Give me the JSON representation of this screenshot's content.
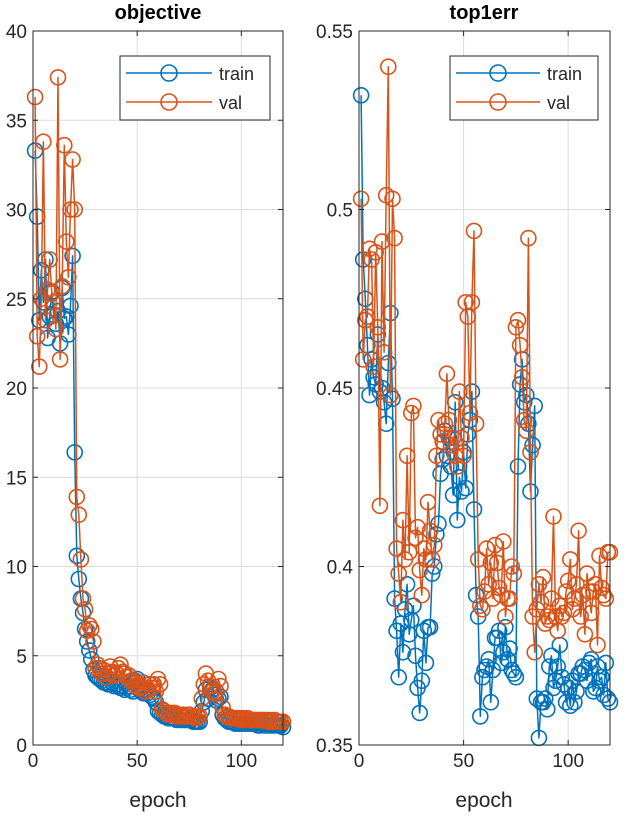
{
  "colors": {
    "train": "#0072BD",
    "val": "#D95319"
  },
  "chart_data": [
    {
      "type": "line",
      "title": "objective",
      "xlabel": "epoch",
      "ylabel": "",
      "xlim": [
        0,
        120
      ],
      "ylim": [
        0,
        40
      ],
      "xticks": [
        0,
        50,
        100
      ],
      "yticks": [
        0,
        5,
        10,
        15,
        20,
        25,
        30,
        35,
        40
      ],
      "grid": true,
      "legend": "top-right",
      "series": [
        {
          "name": "train",
          "color": "#0072BD",
          "x": [
            1,
            2,
            3,
            4,
            5,
            6,
            7,
            8,
            9,
            10,
            11,
            12,
            13,
            14,
            15,
            16,
            17,
            18,
            19,
            20,
            21,
            22,
            23,
            24,
            25,
            26,
            27,
            28,
            29,
            30,
            31,
            32,
            33,
            34,
            35,
            36,
            37,
            38,
            39,
            40,
            41,
            42,
            43,
            44,
            45,
            46,
            47,
            48,
            49,
            50,
            51,
            52,
            53,
            54,
            55,
            56,
            57,
            58,
            59,
            60,
            61,
            62,
            63,
            64,
            65,
            66,
            67,
            68,
            69,
            70,
            71,
            72,
            73,
            74,
            75,
            76,
            77,
            78,
            79,
            80,
            81,
            82,
            83,
            84,
            85,
            86,
            87,
            88,
            89,
            90,
            91,
            92,
            93,
            94,
            95,
            96,
            97,
            98,
            99,
            100,
            101,
            102,
            103,
            104,
            105,
            106,
            107,
            108,
            109,
            110,
            111,
            112,
            113,
            114,
            115,
            116,
            117,
            118,
            119,
            120
          ],
          "y": [
            33.3,
            29.6,
            23.8,
            26.6,
            24.8,
            27.2,
            22.8,
            24.0,
            25.4,
            24.1,
            23.6,
            24.3,
            22.5,
            25.6,
            23.9,
            24.0,
            23.0,
            24.6,
            27.4,
            16.4,
            10.6,
            9.3,
            8.2,
            7.4,
            6.5,
            5.8,
            5.3,
            4.8,
            4.2,
            3.9,
            3.8,
            3.7,
            3.6,
            3.5,
            3.5,
            3.4,
            3.4,
            3.5,
            3.3,
            3.4,
            3.3,
            3.2,
            3.3,
            3.1,
            3.2,
            3.3,
            3.1,
            3.0,
            3.6,
            3.7,
            3.1,
            3.0,
            2.9,
            3.1,
            2.9,
            2.8,
            2.7,
            2.6,
            2.4,
            1.9,
            1.8,
            1.7,
            1.6,
            1.6,
            1.5,
            1.5,
            1.5,
            1.5,
            1.4,
            1.5,
            1.4,
            1.4,
            1.4,
            1.4,
            1.4,
            1.4,
            1.3,
            1.3,
            1.3,
            1.3,
            1.9,
            2.4,
            3.1,
            2.6,
            3.2,
            3.1,
            2.8,
            2.5,
            2.6,
            2.7,
            1.7,
            1.5,
            1.4,
            1.3,
            1.3,
            1.3,
            1.2,
            1.2,
            1.2,
            1.2,
            1.2,
            1.2,
            1.2,
            1.2,
            1.2,
            1.2,
            1.2,
            1.1,
            1.1,
            1.2,
            1.1,
            1.1,
            1.1,
            1.1,
            1.1,
            1.1,
            1.1,
            1.1,
            1.1,
            1.0
          ]
        },
        {
          "name": "val",
          "color": "#D95319",
          "x": [
            1,
            2,
            3,
            4,
            5,
            6,
            7,
            8,
            9,
            10,
            11,
            12,
            13,
            14,
            15,
            16,
            17,
            18,
            19,
            20,
            21,
            22,
            23,
            24,
            25,
            26,
            27,
            28,
            29,
            30,
            31,
            32,
            33,
            34,
            35,
            36,
            37,
            38,
            39,
            40,
            41,
            42,
            43,
            44,
            45,
            46,
            47,
            48,
            49,
            50,
            51,
            52,
            53,
            54,
            55,
            56,
            57,
            58,
            59,
            60,
            61,
            62,
            63,
            64,
            65,
            66,
            67,
            68,
            69,
            70,
            71,
            72,
            73,
            74,
            75,
            76,
            77,
            78,
            79,
            80,
            81,
            82,
            83,
            84,
            85,
            86,
            87,
            88,
            89,
            90,
            91,
            92,
            93,
            94,
            95,
            96,
            97,
            98,
            99,
            100,
            101,
            102,
            103,
            104,
            105,
            106,
            107,
            108,
            109,
            110,
            111,
            112,
            113,
            114,
            115,
            116,
            117,
            118,
            119,
            120
          ],
          "y": [
            36.3,
            22.9,
            21.2,
            25.0,
            33.8,
            23.8,
            25.5,
            27.2,
            25.3,
            24.8,
            23.3,
            37.4,
            21.6,
            25.7,
            33.6,
            28.2,
            26.2,
            30.0,
            32.8,
            30.0,
            13.9,
            12.9,
            10.4,
            8.2,
            7.6,
            6.4,
            6.7,
            6.5,
            5.8,
            4.3,
            4.5,
            4.3,
            4.0,
            4.2,
            3.8,
            4.0,
            4.4,
            4.1,
            3.9,
            4.0,
            4.3,
            4.5,
            4.1,
            4.0,
            3.8,
            3.9,
            3.6,
            3.6,
            3.3,
            3.5,
            3.2,
            3.3,
            3.5,
            3.0,
            3.1,
            3.4,
            3.2,
            3.4,
            3.0,
            3.7,
            3.4,
            2.0,
            1.9,
            1.8,
            1.7,
            1.8,
            1.7,
            1.8,
            1.6,
            1.7,
            1.6,
            1.7,
            1.6,
            1.6,
            1.7,
            1.6,
            1.6,
            1.5,
            1.6,
            1.6,
            2.6,
            3.4,
            4.0,
            3.6,
            3.3,
            3.0,
            2.9,
            3.0,
            3.7,
            3.3,
            2.1,
            1.7,
            1.6,
            1.6,
            1.5,
            1.5,
            1.5,
            1.5,
            1.5,
            1.4,
            1.5,
            1.4,
            1.5,
            1.4,
            1.4,
            1.4,
            1.4,
            1.4,
            1.4,
            1.4,
            1.4,
            1.4,
            1.3,
            1.4,
            1.3,
            1.4,
            1.3,
            1.3,
            1.3,
            1.3
          ]
        }
      ]
    },
    {
      "type": "line",
      "title": "top1err",
      "xlabel": "epoch",
      "ylabel": "",
      "xlim": [
        0,
        120
      ],
      "ylim": [
        0.35,
        0.55
      ],
      "xticks": [
        0,
        50,
        100
      ],
      "yticks": [
        0.35,
        0.4,
        0.45,
        0.5,
        0.55
      ],
      "grid": true,
      "legend": "top-right",
      "series": [
        {
          "name": "train",
          "color": "#0072BD",
          "x": [
            1,
            2,
            3,
            4,
            5,
            6,
            7,
            8,
            9,
            10,
            11,
            12,
            13,
            14,
            15,
            16,
            17,
            18,
            19,
            20,
            21,
            22,
            23,
            24,
            25,
            26,
            27,
            28,
            29,
            30,
            31,
            32,
            33,
            34,
            35,
            36,
            37,
            38,
            39,
            40,
            41,
            42,
            43,
            44,
            45,
            46,
            47,
            48,
            49,
            50,
            51,
            52,
            53,
            54,
            55,
            56,
            57,
            58,
            59,
            60,
            61,
            62,
            63,
            64,
            65,
            66,
            67,
            68,
            69,
            70,
            71,
            72,
            73,
            74,
            75,
            76,
            77,
            78,
            79,
            80,
            81,
            82,
            83,
            84,
            85,
            86,
            87,
            88,
            89,
            90,
            91,
            92,
            93,
            94,
            95,
            96,
            97,
            98,
            99,
            100,
            101,
            102,
            103,
            104,
            105,
            106,
            107,
            108,
            109,
            110,
            111,
            112,
            113,
            114,
            115,
            116,
            117,
            118,
            119,
            120
          ],
          "y": [
            0.532,
            0.486,
            0.475,
            0.462,
            0.448,
            0.458,
            0.453,
            0.451,
            0.465,
            0.449,
            0.45,
            0.446,
            0.44,
            0.457,
            0.471,
            0.447,
            0.391,
            0.382,
            0.369,
            0.384,
            0.376,
            0.388,
            0.395,
            0.381,
            0.385,
            0.389,
            0.375,
            0.366,
            0.359,
            0.368,
            0.382,
            0.373,
            0.383,
            0.383,
            0.398,
            0.4,
            0.409,
            0.412,
            0.426,
            0.43,
            0.438,
            0.431,
            0.436,
            0.428,
            0.42,
            0.446,
            0.413,
            0.425,
            0.421,
            0.432,
            0.422,
            0.437,
            0.441,
            0.449,
            0.416,
            0.392,
            0.386,
            0.358,
            0.369,
            0.371,
            0.372,
            0.374,
            0.362,
            0.371,
            0.38,
            0.38,
            0.382,
            0.373,
            0.376,
            0.383,
            0.374,
            0.377,
            0.371,
            0.37,
            0.369,
            0.428,
            0.451,
            0.458,
            0.446,
            0.448,
            0.44,
            0.421,
            0.434,
            0.445,
            0.363,
            0.352,
            0.362,
            0.362,
            0.363,
            0.36,
            0.372,
            0.375,
            0.366,
            0.368,
            0.372,
            0.378,
            0.369,
            0.367,
            0.362,
            0.366,
            0.361,
            0.368,
            0.362,
            0.365,
            0.37,
            0.37,
            0.372,
            0.371,
            0.368,
            0.373,
            0.374,
            0.365,
            0.366,
            0.372,
            0.368,
            0.369,
            0.364,
            0.373,
            0.363,
            0.362
          ]
        },
        {
          "name": "val",
          "color": "#D95319",
          "x": [
            1,
            2,
            3,
            4,
            5,
            6,
            7,
            8,
            9,
            10,
            11,
            12,
            13,
            14,
            15,
            16,
            17,
            18,
            19,
            20,
            21,
            22,
            23,
            24,
            25,
            26,
            27,
            28,
            29,
            30,
            31,
            32,
            33,
            34,
            35,
            36,
            37,
            38,
            39,
            40,
            41,
            42,
            43,
            44,
            45,
            46,
            47,
            48,
            49,
            50,
            51,
            52,
            53,
            54,
            55,
            56,
            57,
            58,
            59,
            60,
            61,
            62,
            63,
            64,
            65,
            66,
            67,
            68,
            69,
            70,
            71,
            72,
            73,
            74,
            75,
            76,
            77,
            78,
            79,
            80,
            81,
            82,
            83,
            84,
            85,
            86,
            87,
            88,
            89,
            90,
            91,
            92,
            93,
            94,
            95,
            96,
            97,
            98,
            99,
            100,
            101,
            102,
            103,
            104,
            105,
            106,
            107,
            108,
            109,
            110,
            111,
            112,
            113,
            114,
            115,
            116,
            117,
            118,
            119,
            120
          ],
          "y": [
            0.503,
            0.458,
            0.469,
            0.47,
            0.489,
            0.486,
            0.456,
            0.488,
            0.467,
            0.417,
            0.491,
            0.46,
            0.504,
            0.54,
            0.448,
            0.503,
            0.492,
            0.405,
            0.398,
            0.39,
            0.413,
            0.402,
            0.431,
            0.404,
            0.443,
            0.445,
            0.408,
            0.411,
            0.399,
            0.392,
            0.405,
            0.402,
            0.418,
            0.41,
            0.402,
            0.406,
            0.431,
            0.441,
            0.437,
            0.435,
            0.44,
            0.454,
            0.441,
            0.434,
            0.436,
            0.431,
            0.428,
            0.449,
            0.436,
            0.431,
            0.474,
            0.47,
            0.443,
            0.474,
            0.494,
            0.44,
            0.402,
            0.389,
            0.388,
            0.393,
            0.405,
            0.395,
            0.401,
            0.391,
            0.406,
            0.401,
            0.394,
            0.392,
            0.407,
            0.386,
            0.391,
            0.391,
            0.4,
            0.398,
            0.467,
            0.469,
            0.462,
            0.453,
            0.441,
            0.438,
            0.492,
            0.432,
            0.386,
            0.376,
            0.388,
            0.395,
            0.39,
            0.397,
            0.384,
            0.386,
            0.385,
            0.391,
            0.414,
            0.386,
            0.382,
            0.389,
            0.386,
            0.387,
            0.393,
            0.396,
            0.402,
            0.388,
            0.391,
            0.395,
            0.41,
            0.386,
            0.392,
            0.381,
            0.398,
            0.393,
            0.387,
            0.393,
            0.395,
            0.378,
            0.403,
            0.394,
            0.392,
            0.391,
            0.404,
            0.404
          ]
        }
      ]
    }
  ]
}
